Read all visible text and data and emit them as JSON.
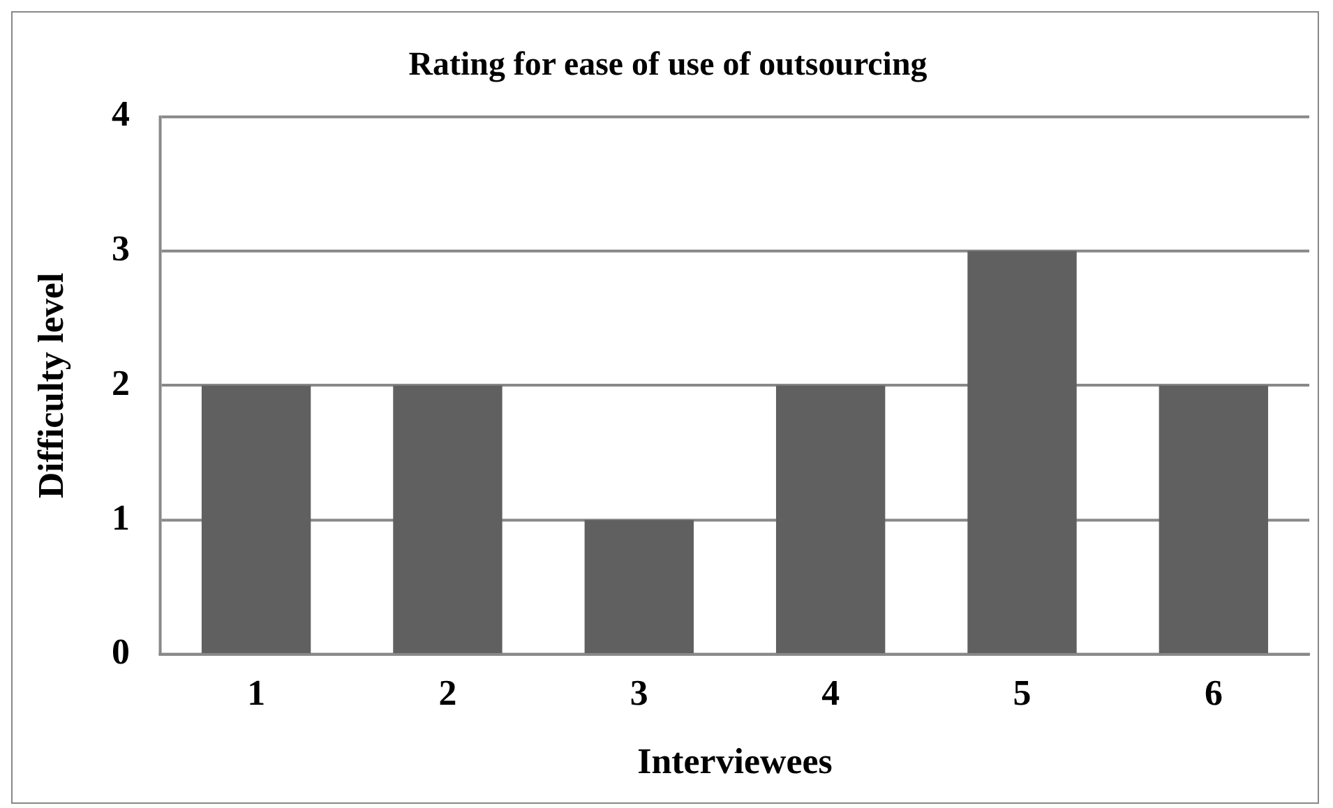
{
  "chart_data": {
    "type": "bar",
    "title": "Rating for ease of use of outsourcing",
    "xlabel": "Interviewees",
    "ylabel": "Difficulty level",
    "categories": [
      "1",
      "2",
      "3",
      "4",
      "5",
      "6"
    ],
    "values": [
      2,
      2,
      1,
      2,
      3,
      2
    ],
    "color": "#606060",
    "ylim": [
      0,
      4
    ],
    "yticks": [
      0,
      1,
      2,
      3,
      4
    ],
    "grid": "y",
    "legend": false
  }
}
